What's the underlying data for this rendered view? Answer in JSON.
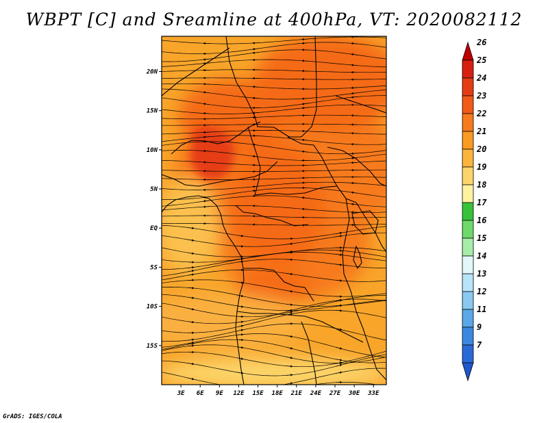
{
  "title": "WBPT [C] and Sreamline at 400hPa, VT: 2020082112",
  "credit": "GrADS: IGES/COLA",
  "map": {
    "lon_range": [
      0,
      35
    ],
    "lat_range": [
      -20,
      24.5
    ],
    "lat_ticks": [
      {
        "value": 20,
        "label": "20N"
      },
      {
        "value": 15,
        "label": "15N"
      },
      {
        "value": 10,
        "label": "10N"
      },
      {
        "value": 5,
        "label": "5N"
      },
      {
        "value": 0,
        "label": "EQ"
      },
      {
        "value": -5,
        "label": "5S"
      },
      {
        "value": -10,
        "label": "10S"
      },
      {
        "value": -15,
        "label": "15S"
      }
    ],
    "lon_ticks": [
      {
        "value": 3,
        "label": "3E"
      },
      {
        "value": 6,
        "label": "6E"
      },
      {
        "value": 9,
        "label": "9E"
      },
      {
        "value": 12,
        "label": "12E"
      },
      {
        "value": 15,
        "label": "15E"
      },
      {
        "value": 18,
        "label": "18E"
      },
      {
        "value": 21,
        "label": "21E"
      },
      {
        "value": 24,
        "label": "24E"
      },
      {
        "value": 27,
        "label": "27E"
      },
      {
        "value": 30,
        "label": "30E"
      },
      {
        "value": 33,
        "label": "33E"
      }
    ]
  },
  "colorbar": {
    "labels": [
      "26",
      "25",
      "24",
      "23",
      "22",
      "21",
      "20",
      "19",
      "18",
      "17",
      "16",
      "15",
      "14",
      "13",
      "12",
      "11",
      "9",
      "7"
    ],
    "colors": [
      "#c00000",
      "#d82010",
      "#e63c14",
      "#f25a18",
      "#f77a1c",
      "#f99a22",
      "#fbb43c",
      "#fcd56a",
      "#fcf2a0",
      "#37c23a",
      "#6fd86a",
      "#a8ecaa",
      "#e2f8f8",
      "#b8e4f8",
      "#8ac8f0",
      "#5aa8e8",
      "#3c88e0",
      "#2a6ad8",
      "#1f56cc"
    ]
  },
  "colors": {
    "accent": "#f77a1c",
    "map_line": "#000000"
  }
}
